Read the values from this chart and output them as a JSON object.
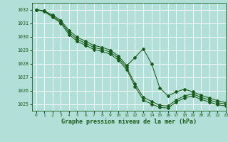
{
  "x": [
    0,
    1,
    2,
    3,
    4,
    5,
    6,
    7,
    8,
    9,
    10,
    11,
    12,
    13,
    14,
    15,
    16,
    17,
    18,
    19,
    20,
    21,
    22,
    23
  ],
  "y_main": [
    1032.0,
    1031.9,
    1031.5,
    1031.1,
    1030.3,
    1029.8,
    1029.5,
    1029.2,
    1029.05,
    1028.85,
    1028.4,
    1027.7,
    1026.5,
    1025.5,
    1025.2,
    1024.9,
    1024.85,
    1025.3,
    1025.6,
    1025.75,
    1025.5,
    1025.3,
    1025.1,
    1025.0
  ],
  "y_upper": [
    1032.0,
    1031.9,
    1031.6,
    1031.2,
    1030.45,
    1029.95,
    1029.65,
    1029.35,
    1029.2,
    1029.0,
    1028.55,
    1027.85,
    1028.45,
    1029.1,
    1028.0,
    1026.2,
    1025.6,
    1025.9,
    1026.1,
    1025.9,
    1025.65,
    1025.45,
    1025.25,
    1025.1
  ],
  "y_lower": [
    1032.0,
    1031.85,
    1031.45,
    1031.0,
    1030.15,
    1029.65,
    1029.35,
    1029.05,
    1028.9,
    1028.7,
    1028.25,
    1027.55,
    1026.3,
    1025.3,
    1025.0,
    1024.75,
    1024.7,
    1025.15,
    1025.45,
    1025.6,
    1025.35,
    1025.15,
    1024.95,
    1024.85
  ],
  "line_color": "#1a5c1a",
  "bg_color": "#b2e0d8",
  "grid_color": "#ffffff",
  "xlabel": "Graphe pression niveau de la mer (hPa)",
  "ylim": [
    1024.5,
    1032.5
  ],
  "xlim": [
    -0.5,
    23
  ],
  "yticks": [
    1025,
    1026,
    1027,
    1028,
    1029,
    1030,
    1031,
    1032
  ],
  "xticks": [
    0,
    1,
    2,
    3,
    4,
    5,
    6,
    7,
    8,
    9,
    10,
    11,
    12,
    13,
    14,
    15,
    16,
    17,
    18,
    19,
    20,
    21,
    22,
    23
  ],
  "markersize": 2.0,
  "linewidth": 0.75
}
